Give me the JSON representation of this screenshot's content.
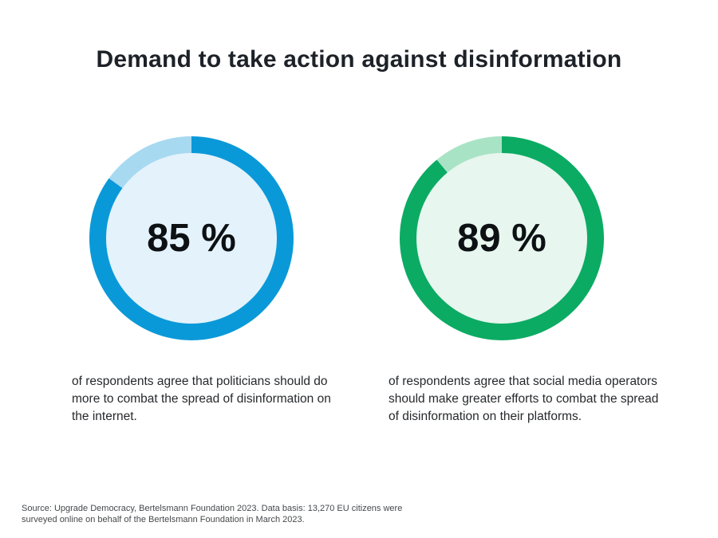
{
  "title": "Demand to take action against disinformation",
  "source_note": "Source: Upgrade Democracy, Bertelsmann Foundation 2023. Data basis: 13,270 EU citizens were\nsurveyed online on behalf of the Bertelsmann Foundation in March 2023.",
  "chart_data": [
    {
      "type": "pie",
      "subtype": "donut",
      "name": "politicians-donut",
      "percent": 85,
      "center_label": "85 %",
      "caption": "of respondents agree that politicians should do\nmore to combat the spread of disinformation on\nthe internet.",
      "slices": [
        {
          "label": "agree",
          "value": 85,
          "color": "#0a99d8"
        },
        {
          "label": "remainder",
          "value": 15,
          "color": "#a7d9f1"
        }
      ],
      "inner_fill": "#e4f2fb",
      "start_angle_deg": 0,
      "direction": "clockwise"
    },
    {
      "type": "pie",
      "subtype": "donut",
      "name": "social-media-donut",
      "percent": 89,
      "center_label": "89 %",
      "caption": "of respondents agree that social media operators\nshould make greater efforts to combat the spread\nof disinformation on their platforms.",
      "slices": [
        {
          "label": "agree",
          "value": 89,
          "color": "#0bab63"
        },
        {
          "label": "remainder",
          "value": 11,
          "color": "#a9e3c5"
        }
      ],
      "inner_fill": "#e7f6ee",
      "start_angle_deg": 0,
      "direction": "clockwise"
    }
  ]
}
